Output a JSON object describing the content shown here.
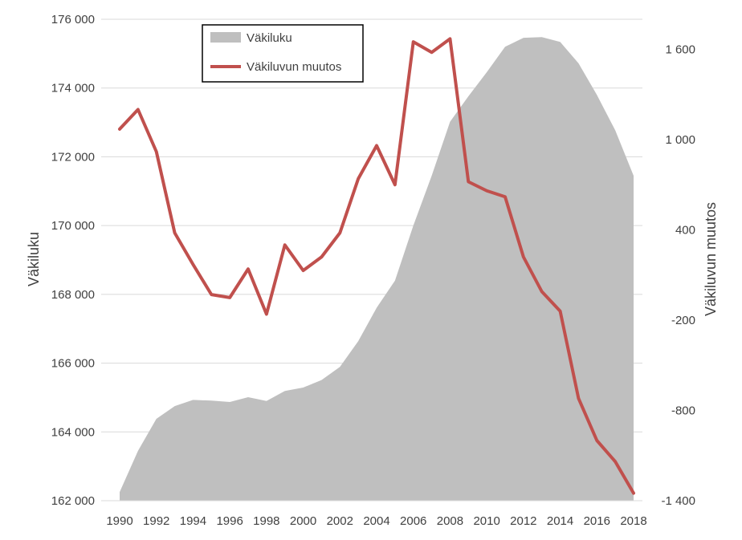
{
  "chart_data": {
    "type": "area",
    "secondary_type": "line",
    "x": [
      1990,
      1991,
      1992,
      1993,
      1994,
      1995,
      1996,
      1997,
      1998,
      1999,
      2000,
      2001,
      2002,
      2003,
      2004,
      2005,
      2006,
      2007,
      2008,
      2009,
      2010,
      2011,
      2012,
      2013,
      2014,
      2015,
      2016,
      2017,
      2018
    ],
    "x_tick_labels": [
      "1990",
      "1992",
      "1994",
      "1996",
      "1998",
      "2000",
      "2002",
      "2004",
      "2006",
      "2008",
      "2010",
      "2012",
      "2014",
      "2016",
      "2018"
    ],
    "series": [
      {
        "name": "Väkiluku",
        "axis": "left",
        "type": "area",
        "color": "#bfbfbf",
        "values": [
          162250,
          163450,
          164380,
          164750,
          164930,
          164910,
          164870,
          165010,
          164900,
          165190,
          165290,
          165510,
          165890,
          166640,
          167610,
          168400,
          170000,
          171450,
          173020,
          173760,
          174460,
          175200,
          175460,
          175480,
          175340,
          174720,
          173800,
          172770,
          171450
        ]
      },
      {
        "name": "Väkiluvun muutos",
        "axis": "right",
        "type": "line",
        "color": "#c0504d",
        "values": [
          1070,
          1200,
          920,
          380,
          170,
          -30,
          -50,
          140,
          -160,
          300,
          130,
          220,
          380,
          740,
          960,
          700,
          1650,
          1580,
          1670,
          720,
          660,
          620,
          220,
          -10,
          -140,
          -720,
          -1000,
          -1140,
          -1350
        ]
      }
    ],
    "y_left": {
      "label": "Väkiluku",
      "min": 162000,
      "max": 176000,
      "ticks": [
        162000,
        164000,
        166000,
        168000,
        170000,
        172000,
        174000,
        176000
      ],
      "tick_labels": [
        "162 000",
        "164 000",
        "166 000",
        "168 000",
        "170 000",
        "172 000",
        "174 000",
        "176 000"
      ]
    },
    "y_right": {
      "label": "Väkiluvun muutos",
      "min": -1400,
      "max": 1800,
      "ticks": [
        -1400,
        -800,
        -200,
        400,
        1000,
        1600
      ],
      "tick_labels": [
        "-1 400",
        "-800",
        "-200",
        "400",
        "1 000",
        "1 600"
      ]
    },
    "grid": true,
    "legend": {
      "placement": "top-left",
      "entries": [
        "Väkiluku",
        "Väkiluvun muutos"
      ]
    }
  }
}
